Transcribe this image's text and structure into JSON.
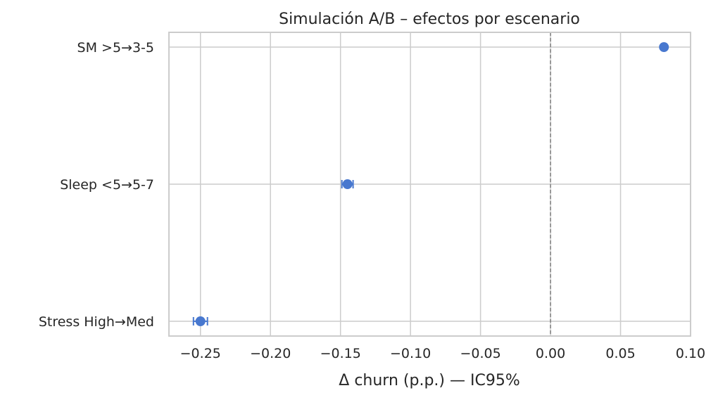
{
  "chart_data": {
    "type": "scatter",
    "title": "Simulación A/B – efectos por escenario",
    "xlabel": "Δ churn (p.p.) — IC95%",
    "ylabel": "",
    "xlim": [
      -0.2725,
      0.1
    ],
    "xticks": [
      -0.25,
      -0.2,
      -0.15,
      -0.1,
      -0.05,
      0.0,
      0.05,
      0.1
    ],
    "xtick_labels": [
      "−0.25",
      "−0.20",
      "−0.15",
      "−0.10",
      "−0.05",
      "0.00",
      "0.05",
      "0.10"
    ],
    "categories": [
      "SM >5→3-5",
      "Sleep <5→5-7",
      "Stress High→Med"
    ],
    "values": [
      0.081,
      -0.145,
      -0.25
    ],
    "ci_low": [
      0.08,
      -0.149,
      -0.255
    ],
    "ci_high": [
      0.082,
      -0.141,
      -0.245
    ],
    "reference_line": 0.0,
    "grid": true,
    "colors": {
      "point": "#4878cf",
      "grid": "#cccccc",
      "reference": "#7f7f7f"
    }
  }
}
